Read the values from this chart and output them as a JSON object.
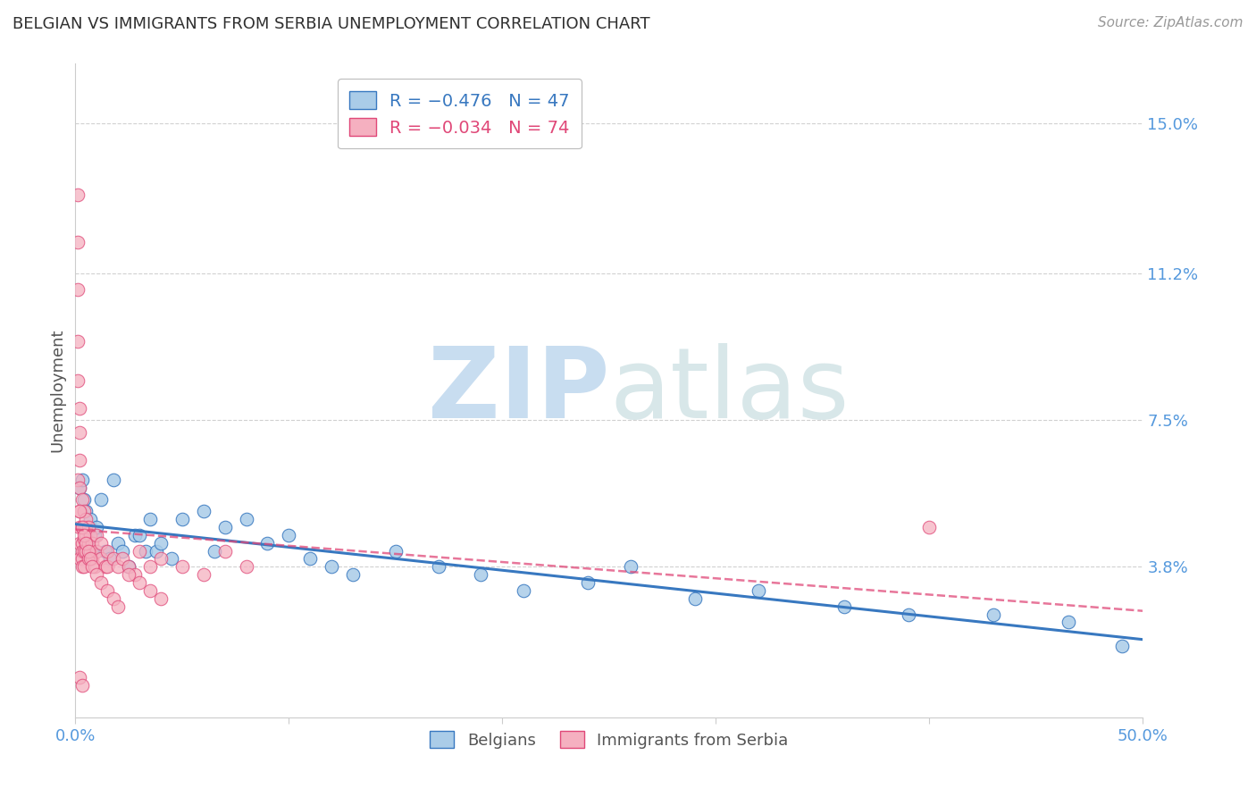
{
  "title": "BELGIAN VS IMMIGRANTS FROM SERBIA UNEMPLOYMENT CORRELATION CHART",
  "source": "Source: ZipAtlas.com",
  "ylabel": "Unemployment",
  "ytick_labels": [
    "15.0%",
    "11.2%",
    "7.5%",
    "3.8%"
  ],
  "ytick_values": [
    0.15,
    0.112,
    0.075,
    0.038
  ],
  "xmin": 0.0,
  "xmax": 0.5,
  "ymin": 0.0,
  "ymax": 0.165,
  "color_belgian": "#aacce8",
  "color_serbian": "#f5b0c0",
  "color_belgian_line": "#3878c0",
  "color_serbian_line": "#e04878",
  "color_axis_labels": "#5599dd",
  "belgians_x": [
    0.002,
    0.003,
    0.004,
    0.004,
    0.005,
    0.006,
    0.007,
    0.008,
    0.009,
    0.01,
    0.012,
    0.014,
    0.016,
    0.018,
    0.02,
    0.022,
    0.025,
    0.028,
    0.03,
    0.033,
    0.035,
    0.038,
    0.04,
    0.045,
    0.05,
    0.06,
    0.065,
    0.07,
    0.08,
    0.09,
    0.1,
    0.11,
    0.12,
    0.13,
    0.15,
    0.17,
    0.19,
    0.21,
    0.24,
    0.26,
    0.29,
    0.32,
    0.36,
    0.39,
    0.43,
    0.465,
    0.49
  ],
  "belgians_y": [
    0.058,
    0.06,
    0.055,
    0.048,
    0.052,
    0.045,
    0.05,
    0.042,
    0.046,
    0.048,
    0.055,
    0.042,
    0.04,
    0.06,
    0.044,
    0.042,
    0.038,
    0.046,
    0.046,
    0.042,
    0.05,
    0.042,
    0.044,
    0.04,
    0.05,
    0.052,
    0.042,
    0.048,
    0.05,
    0.044,
    0.046,
    0.04,
    0.038,
    0.036,
    0.042,
    0.038,
    0.036,
    0.032,
    0.034,
    0.038,
    0.03,
    0.032,
    0.028,
    0.026,
    0.026,
    0.024,
    0.018
  ],
  "serbia_x": [
    0.001,
    0.001,
    0.001,
    0.001,
    0.001,
    0.001,
    0.002,
    0.002,
    0.002,
    0.002,
    0.002,
    0.002,
    0.002,
    0.002,
    0.003,
    0.003,
    0.003,
    0.003,
    0.003,
    0.003,
    0.004,
    0.004,
    0.004,
    0.004,
    0.004,
    0.005,
    0.005,
    0.005,
    0.005,
    0.006,
    0.006,
    0.006,
    0.007,
    0.007,
    0.008,
    0.008,
    0.009,
    0.01,
    0.01,
    0.012,
    0.012,
    0.014,
    0.015,
    0.015,
    0.018,
    0.02,
    0.022,
    0.025,
    0.028,
    0.03,
    0.035,
    0.04,
    0.05,
    0.06,
    0.07,
    0.08,
    0.002,
    0.003,
    0.004,
    0.005,
    0.006,
    0.007,
    0.008,
    0.01,
    0.012,
    0.015,
    0.018,
    0.02,
    0.025,
    0.03,
    0.035,
    0.04,
    0.002,
    0.003,
    0.4
  ],
  "serbia_y": [
    0.132,
    0.12,
    0.108,
    0.095,
    0.085,
    0.06,
    0.078,
    0.072,
    0.065,
    0.058,
    0.052,
    0.048,
    0.044,
    0.04,
    0.048,
    0.044,
    0.042,
    0.04,
    0.038,
    0.055,
    0.048,
    0.045,
    0.042,
    0.038,
    0.052,
    0.048,
    0.046,
    0.042,
    0.05,
    0.048,
    0.044,
    0.04,
    0.046,
    0.042,
    0.044,
    0.04,
    0.038,
    0.046,
    0.042,
    0.044,
    0.04,
    0.038,
    0.042,
    0.038,
    0.04,
    0.038,
    0.04,
    0.038,
    0.036,
    0.042,
    0.038,
    0.04,
    0.038,
    0.036,
    0.042,
    0.038,
    0.052,
    0.048,
    0.046,
    0.044,
    0.042,
    0.04,
    0.038,
    0.036,
    0.034,
    0.032,
    0.03,
    0.028,
    0.036,
    0.034,
    0.032,
    0.03,
    0.01,
    0.008,
    0.048
  ]
}
